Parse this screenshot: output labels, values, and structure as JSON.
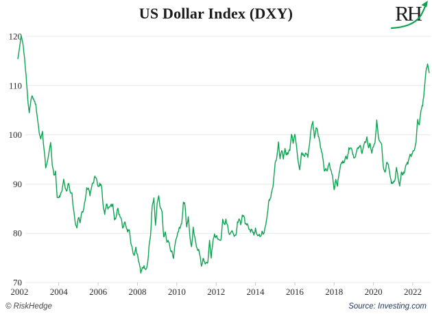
{
  "header": {
    "title": "US Dollar Index (DXY)",
    "logo_text": "RH"
  },
  "footer": {
    "copyright": "© RiskHedge",
    "source": "Source: Investing.com"
  },
  "colors": {
    "line": "#0ba350",
    "logo_arrow": "#0ba350",
    "grid": "#e8e8e8",
    "tick": "#c8c8c8",
    "axis_label": "#2b2b2b",
    "title": "#1a1a1a",
    "copyright": "#474747",
    "source": "#1f3864"
  },
  "chart_data": {
    "type": "line",
    "title": "US Dollar Index (DXY)",
    "series_name": "DXY",
    "xlabel": "",
    "ylabel": "",
    "x_start_year": 2001.9167,
    "x_step_years": 0.0833,
    "x_ticks": [
      2002,
      2004,
      2006,
      2008,
      2010,
      2012,
      2014,
      2016,
      2018,
      2020,
      2022
    ],
    "y_ticks": [
      70,
      80,
      90,
      100,
      110,
      120
    ],
    "ylim": [
      70,
      122
    ],
    "xlim": [
      2001.9,
      2022.9
    ],
    "grid": "horizontal",
    "legend": "none",
    "line_noise_amplitude": 0.8,
    "values": [
      115.5,
      117.5,
      120.2,
      118.6,
      116.0,
      112.2,
      107.2,
      104.9,
      107.3,
      107.9,
      107.1,
      106.1,
      103.3,
      101.0,
      99.6,
      100.8,
      96.8,
      93.4,
      95.0,
      96.8,
      99.0,
      93.8,
      92.1,
      92.6,
      87.4,
      87.0,
      87.6,
      88.8,
      90.4,
      88.9,
      89.0,
      90.1,
      88.6,
      87.8,
      85.1,
      82.0,
      81.0,
      83.4,
      82.6,
      84.2,
      84.6,
      86.6,
      89.0,
      89.4,
      87.5,
      89.4,
      90.0,
      92.0,
      91.0,
      89.6,
      90.2,
      89.8,
      86.1,
      84.0,
      85.7,
      85.2,
      85.0,
      85.7,
      85.5,
      83.2,
      83.5,
      85.0,
      83.7,
      83.2,
      81.4,
      82.2,
      81.6,
      80.2,
      80.8,
      78.0,
      76.5,
      75.0,
      76.7,
      75.5,
      73.7,
      72.1,
      72.7,
      73.1,
      72.4,
      73.3,
      77.1,
      79.1,
      85.6,
      87.4,
      81.3,
      85.8,
      88.0,
      85.4,
      84.6,
      79.4,
      80.1,
      78.4,
      78.2,
      76.7,
      76.2,
      74.9,
      77.9,
      79.5,
      80.4,
      81.1,
      81.9,
      86.6,
      86.0,
      81.6,
      83.2,
      78.7,
      77.2,
      81.2,
      79.0,
      77.7,
      76.9,
      75.9,
      73.0,
      74.6,
      74.5,
      73.9,
      74.1,
      78.6,
      75.1,
      78.4,
      80.2,
      79.3,
      78.8,
      79.0,
      78.8,
      83.0,
      81.6,
      82.8,
      81.2,
      79.9,
      80.0,
      80.2,
      79.8,
      79.2,
      81.9,
      83.0,
      81.7,
      83.4,
      83.1,
      81.5,
      82.1,
      80.2,
      80.2,
      80.7,
      80.0,
      81.3,
      79.7,
      80.1,
      79.5,
      80.4,
      79.8,
      81.5,
      82.7,
      85.9,
      87.0,
      88.4,
      90.3,
      94.8,
      95.3,
      98.4,
      94.6,
      96.9,
      95.5,
      97.3,
      96.0,
      96.3,
      97.0,
      100.2,
      98.6,
      99.6,
      98.2,
      94.6,
      93.0,
      95.9,
      96.1,
      95.5,
      96.0,
      95.5,
      98.4,
      101.5,
      102.4,
      99.5,
      101.1,
      100.4,
      99.0,
      96.9,
      95.6,
      92.9,
      92.7,
      93.1,
      94.6,
      93.1,
      92.1,
      89.1,
      90.6,
      90.0,
      91.8,
      94.0,
      94.5,
      94.6,
      95.1,
      95.1,
      97.1,
      97.3,
      96.2,
      95.6,
      96.1,
      97.3,
      97.5,
      97.8,
      96.1,
      98.5,
      98.9,
      99.4,
      97.3,
      98.3,
      96.4,
      97.4,
      98.1,
      102.8,
      99.1,
      98.3,
      97.4,
      93.3,
      92.1,
      93.9,
      94.0,
      91.9,
      89.9,
      90.6,
      90.9,
      93.2,
      91.3,
      90.0,
      92.4,
      92.2,
      92.6,
      94.2,
      94.1,
      96.0,
      95.7,
      96.5,
      96.7,
      98.3,
      103.0,
      101.8,
      104.7,
      105.9,
      108.8,
      112.1,
      114.4,
      112.6
    ]
  }
}
